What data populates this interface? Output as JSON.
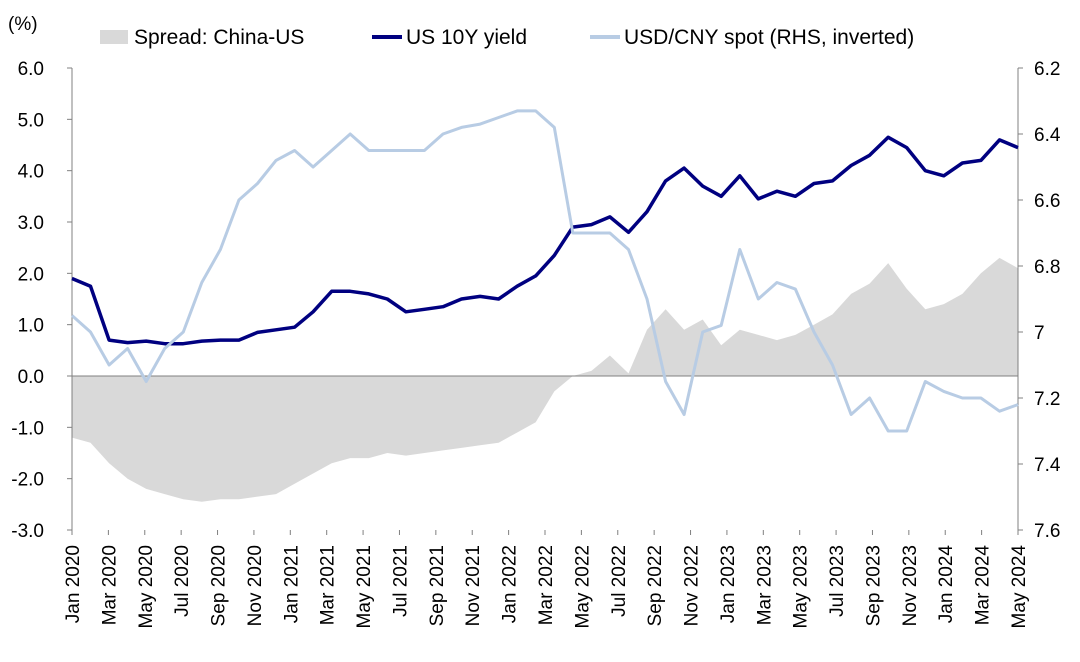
{
  "chart_data": {
    "type": "line",
    "title": "",
    "left_unit": "(%)",
    "legend": {
      "placement": "top",
      "items": [
        {
          "label": "Spread: China-US",
          "swatch": "area",
          "color": "#d9d9d9"
        },
        {
          "label": "US 10Y yield",
          "swatch": "line",
          "color": "#000080"
        },
        {
          "label": "USD/CNY spot (RHS, inverted)",
          "swatch": "line",
          "color": "#b8cce4"
        }
      ]
    },
    "x_tick_labels": [
      "Jan 2020",
      "Mar 2020",
      "May 2020",
      "Jul 2020",
      "Sep 2020",
      "Nov 2020",
      "Jan 2021",
      "Mar 2021",
      "May 2021",
      "Jul 2021",
      "Sep 2021",
      "Nov 2021",
      "Jan 2022",
      "Mar 2022",
      "May 2022",
      "Jul 2022",
      "Sep 2022",
      "Nov 2022",
      "Jan 2023",
      "Mar 2023",
      "May 2023",
      "Jul 2023",
      "Sep 2023",
      "Nov 2023",
      "Jan 2024",
      "Mar 2024",
      "May 2024"
    ],
    "y_left": {
      "range": [
        -3.0,
        6.0
      ],
      "ticks": [
        {
          "value": 6.0,
          "label": "6.0",
          "color": "#000000"
        },
        {
          "value": 5.0,
          "label": "5.0",
          "color": "#000000"
        },
        {
          "value": 4.0,
          "label": "4.0",
          "color": "#000000"
        },
        {
          "value": 3.0,
          "label": "3.0",
          "color": "#000000"
        },
        {
          "value": 2.0,
          "label": "2.0",
          "color": "#000000"
        },
        {
          "value": 1.0,
          "label": "1.0",
          "color": "#000000"
        },
        {
          "value": 0.0,
          "label": "0.0",
          "color": "#000000"
        },
        {
          "value": -1.0,
          "label": "-1.0",
          "color": "#ff0000"
        },
        {
          "value": -2.0,
          "label": "-2.0",
          "color": "#ff0000"
        },
        {
          "value": -3.0,
          "label": "-3.0",
          "color": "#ff0000"
        }
      ]
    },
    "y_right": {
      "range": [
        7.6,
        6.2
      ],
      "inverted": true,
      "ticks": [
        {
          "value": 6.2,
          "label": "6.2"
        },
        {
          "value": 6.4,
          "label": "6.4"
        },
        {
          "value": 6.6,
          "label": "6.6"
        },
        {
          "value": 6.8,
          "label": "6.8"
        },
        {
          "value": 7.0,
          "label": "7"
        },
        {
          "value": 7.2,
          "label": "7.2"
        },
        {
          "value": 7.4,
          "label": "7.4"
        },
        {
          "value": 7.6,
          "label": "7.6"
        }
      ]
    },
    "grid": false,
    "series": [
      {
        "name": "Spread: China-US",
        "type": "area",
        "axis": "left",
        "color": "#d9d9d9",
        "points": [
          [
            0,
            -1.2
          ],
          [
            1,
            -1.3
          ],
          [
            2,
            -1.7
          ],
          [
            3,
            -2.0
          ],
          [
            4,
            -2.2
          ],
          [
            5,
            -2.3
          ],
          [
            6,
            -2.4
          ],
          [
            7,
            -2.45
          ],
          [
            8,
            -2.4
          ],
          [
            9,
            -2.4
          ],
          [
            10,
            -2.35
          ],
          [
            11,
            -2.3
          ],
          [
            12,
            -2.1
          ],
          [
            13,
            -1.9
          ],
          [
            14,
            -1.7
          ],
          [
            15,
            -1.6
          ],
          [
            16,
            -1.6
          ],
          [
            17,
            -1.5
          ],
          [
            18,
            -1.55
          ],
          [
            19,
            -1.5
          ],
          [
            20,
            -1.45
          ],
          [
            21,
            -1.4
          ],
          [
            22,
            -1.35
          ],
          [
            23,
            -1.3
          ],
          [
            24,
            -1.1
          ],
          [
            25,
            -0.9
          ],
          [
            26,
            -0.3
          ],
          [
            27,
            0.0
          ],
          [
            28,
            0.1
          ],
          [
            29,
            0.4
          ],
          [
            30,
            0.05
          ],
          [
            31,
            0.9
          ],
          [
            32,
            1.3
          ],
          [
            33,
            0.9
          ],
          [
            34,
            1.1
          ],
          [
            35,
            0.6
          ],
          [
            36,
            0.9
          ],
          [
            37,
            0.8
          ],
          [
            38,
            0.7
          ],
          [
            39,
            0.8
          ],
          [
            40,
            1.0
          ],
          [
            41,
            1.2
          ],
          [
            42,
            1.6
          ],
          [
            43,
            1.8
          ],
          [
            44,
            2.2
          ],
          [
            45,
            1.7
          ],
          [
            46,
            1.3
          ],
          [
            47,
            1.4
          ],
          [
            48,
            1.6
          ],
          [
            49,
            2.0
          ],
          [
            50,
            2.3
          ],
          [
            51,
            2.1
          ]
        ]
      },
      {
        "name": "US 10Y yield",
        "type": "line",
        "axis": "left",
        "color": "#000080",
        "points": [
          [
            0,
            1.9
          ],
          [
            1,
            1.75
          ],
          [
            2,
            0.7
          ],
          [
            3,
            0.65
          ],
          [
            4,
            0.68
          ],
          [
            5,
            0.63
          ],
          [
            6,
            0.63
          ],
          [
            7,
            0.68
          ],
          [
            8,
            0.7
          ],
          [
            9,
            0.7
          ],
          [
            10,
            0.85
          ],
          [
            11,
            0.9
          ],
          [
            12,
            0.95
          ],
          [
            13,
            1.25
          ],
          [
            14,
            1.65
          ],
          [
            15,
            1.65
          ],
          [
            16,
            1.6
          ],
          [
            17,
            1.5
          ],
          [
            18,
            1.25
          ],
          [
            19,
            1.3
          ],
          [
            20,
            1.35
          ],
          [
            21,
            1.5
          ],
          [
            22,
            1.55
          ],
          [
            23,
            1.5
          ],
          [
            24,
            1.75
          ],
          [
            25,
            1.95
          ],
          [
            26,
            2.35
          ],
          [
            27,
            2.9
          ],
          [
            28,
            2.95
          ],
          [
            29,
            3.1
          ],
          [
            30,
            2.8
          ],
          [
            31,
            3.2
          ],
          [
            32,
            3.8
          ],
          [
            33,
            4.05
          ],
          [
            34,
            3.7
          ],
          [
            35,
            3.5
          ],
          [
            36,
            3.9
          ],
          [
            37,
            3.45
          ],
          [
            38,
            3.6
          ],
          [
            39,
            3.5
          ],
          [
            40,
            3.75
          ],
          [
            41,
            3.8
          ],
          [
            42,
            4.1
          ],
          [
            43,
            4.3
          ],
          [
            44,
            4.65
          ],
          [
            45,
            4.45
          ],
          [
            46,
            4.0
          ],
          [
            47,
            3.9
          ],
          [
            48,
            4.15
          ],
          [
            49,
            4.2
          ],
          [
            50,
            4.6
          ],
          [
            51,
            4.45
          ]
        ]
      },
      {
        "name": "USD/CNY spot (RHS, inverted)",
        "type": "line",
        "axis": "right",
        "color": "#b8cce4",
        "points": [
          [
            0,
            6.95
          ],
          [
            1,
            7.0
          ],
          [
            2,
            7.1
          ],
          [
            3,
            7.05
          ],
          [
            4,
            7.15
          ],
          [
            5,
            7.05
          ],
          [
            6,
            7.0
          ],
          [
            7,
            6.85
          ],
          [
            8,
            6.75
          ],
          [
            9,
            6.6
          ],
          [
            10,
            6.55
          ],
          [
            11,
            6.48
          ],
          [
            12,
            6.45
          ],
          [
            13,
            6.5
          ],
          [
            14,
            6.45
          ],
          [
            15,
            6.4
          ],
          [
            16,
            6.45
          ],
          [
            17,
            6.45
          ],
          [
            18,
            6.45
          ],
          [
            19,
            6.45
          ],
          [
            20,
            6.4
          ],
          [
            21,
            6.38
          ],
          [
            22,
            6.37
          ],
          [
            23,
            6.35
          ],
          [
            24,
            6.33
          ],
          [
            25,
            6.33
          ],
          [
            26,
            6.38
          ],
          [
            27,
            6.7
          ],
          [
            28,
            6.7
          ],
          [
            29,
            6.7
          ],
          [
            30,
            6.75
          ],
          [
            31,
            6.9
          ],
          [
            32,
            7.15
          ],
          [
            33,
            7.25
          ],
          [
            34,
            7.0
          ],
          [
            35,
            6.98
          ],
          [
            36,
            6.75
          ],
          [
            37,
            6.9
          ],
          [
            38,
            6.85
          ],
          [
            39,
            6.87
          ],
          [
            40,
            7.0
          ],
          [
            41,
            7.1
          ],
          [
            42,
            7.25
          ],
          [
            43,
            7.2
          ],
          [
            44,
            7.3
          ],
          [
            45,
            7.3
          ],
          [
            46,
            7.15
          ],
          [
            47,
            7.18
          ],
          [
            48,
            7.2
          ],
          [
            49,
            7.2
          ],
          [
            50,
            7.24
          ],
          [
            51,
            7.22
          ]
        ]
      }
    ]
  }
}
